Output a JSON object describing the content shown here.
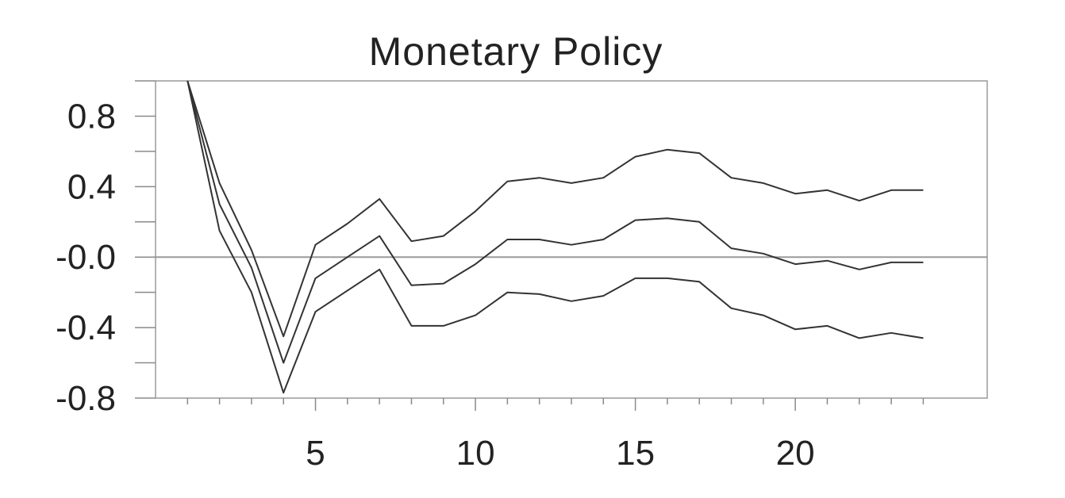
{
  "chart_data": {
    "type": "line",
    "title": "Monetary Policy",
    "xlabel": "",
    "ylabel": "",
    "xlim": [
      0,
      26
    ],
    "ylim": [
      -0.8,
      1.0
    ],
    "x_ticks": [
      5,
      10,
      15,
      20
    ],
    "x_tick_labels": [
      "5",
      "10",
      "15",
      "20"
    ],
    "y_ticks": [
      0.8,
      0.4,
      0.0,
      -0.4,
      -0.8
    ],
    "y_tick_labels": [
      "0.8",
      "0.4",
      "-0.0",
      "-0.4",
      "-0.8"
    ],
    "y_minor_ticks": [
      1.0,
      0.6,
      0.2,
      -0.2,
      -0.6
    ],
    "x_minor_ticks": [
      1,
      2,
      3,
      4,
      5,
      6,
      7,
      8,
      9,
      10,
      11,
      12,
      13,
      14,
      15,
      16,
      17,
      18,
      19,
      20,
      21,
      22,
      23,
      24
    ],
    "zero_line": 0,
    "grid": false,
    "legend": "none",
    "x": [
      1,
      2,
      3,
      4,
      5,
      6,
      7,
      8,
      9,
      10,
      11,
      12,
      13,
      14,
      15,
      16,
      17,
      18,
      19,
      20,
      21,
      22,
      23,
      24
    ],
    "series": [
      {
        "role": "upper",
        "values": [
          1.0,
          0.42,
          0.04,
          -0.45,
          0.07,
          0.19,
          0.33,
          0.09,
          0.12,
          0.26,
          0.43,
          0.45,
          0.42,
          0.45,
          0.57,
          0.61,
          0.59,
          0.45,
          0.42,
          0.36,
          0.38,
          0.32,
          0.38,
          0.38
        ]
      },
      {
        "role": "point",
        "values": [
          1.0,
          0.3,
          -0.06,
          -0.6,
          -0.12,
          0.0,
          0.12,
          -0.16,
          -0.15,
          -0.04,
          0.1,
          0.1,
          0.07,
          0.1,
          0.21,
          0.22,
          0.2,
          0.05,
          0.02,
          -0.04,
          -0.02,
          -0.07,
          -0.03,
          -0.03
        ]
      },
      {
        "role": "lower",
        "values": [
          1.0,
          0.15,
          -0.2,
          -0.77,
          -0.31,
          -0.19,
          -0.07,
          -0.39,
          -0.39,
          -0.33,
          -0.2,
          -0.21,
          -0.25,
          -0.22,
          -0.12,
          -0.12,
          -0.14,
          -0.29,
          -0.33,
          -0.41,
          -0.39,
          -0.46,
          -0.43,
          -0.46
        ]
      }
    ]
  }
}
